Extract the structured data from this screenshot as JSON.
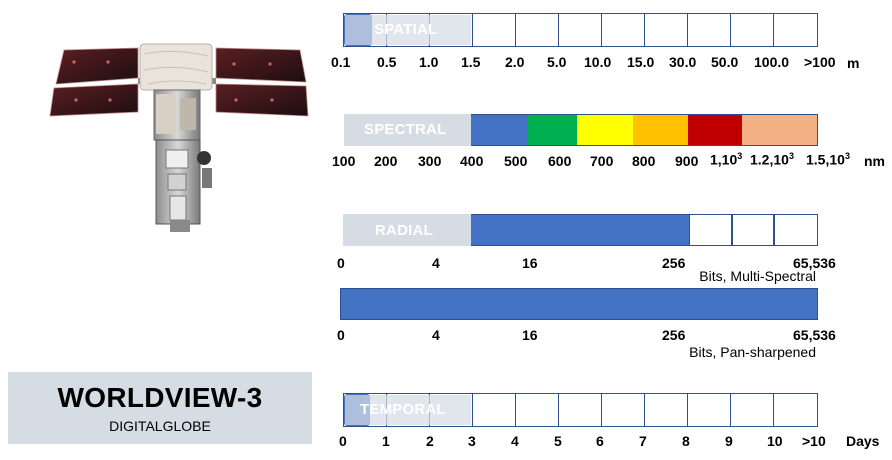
{
  "satellite": {
    "name": "WORLDVIEW-3",
    "operator": "DIGITALGLOBE"
  },
  "spatial": {
    "label": "SPATIAL",
    "unit": "m",
    "ticks": [
      "0.1",
      "0.5",
      "1.0",
      "1.5",
      "2.0",
      "5.0",
      "10.0",
      "15.0",
      "30.0",
      "50.0",
      "100.0",
      ">100"
    ],
    "highlight_from": "0.1",
    "highlight_to": "1.5",
    "color": "#4472c4"
  },
  "spectral": {
    "label": "SPECTRAL",
    "unit": "nm",
    "ticks": [
      "100",
      "200",
      "300",
      "400",
      "500",
      "600",
      "700",
      "800",
      "900"
    ],
    "ticks_exp": [
      {
        "base": "1,10",
        "exp": "3"
      },
      {
        "base": "1.2,10",
        "exp": "3"
      },
      {
        "base": "1.5,10",
        "exp": "3"
      }
    ],
    "bands": [
      {
        "color": "#4472c4"
      },
      {
        "color": "#00b050"
      },
      {
        "color": "#ffff00"
      },
      {
        "color": "#ffc000"
      },
      {
        "color": "#c00000"
      },
      {
        "color": "#f4b183"
      }
    ]
  },
  "radial_ms": {
    "label": "RADIAL",
    "ticks": [
      "0",
      "4",
      "16",
      "256",
      "65,536"
    ],
    "note": "Bits, Multi-Spectral",
    "fill_to": "256",
    "color": "#4472c4"
  },
  "radial_pan": {
    "ticks": [
      "0",
      "4",
      "16",
      "256",
      "65,536"
    ],
    "note": "Bits, Pan-sharpened",
    "fill_to": "65,536",
    "color": "#4472c4"
  },
  "temporal": {
    "label": "TEMPORAL",
    "unit": "Days",
    "ticks": [
      "0",
      "1",
      "2",
      "3",
      "4",
      "5",
      "6",
      "7",
      "8",
      "9",
      "10",
      ">10"
    ],
    "highlight_from": "0",
    "highlight_to": "1",
    "color": "#4472c4"
  }
}
